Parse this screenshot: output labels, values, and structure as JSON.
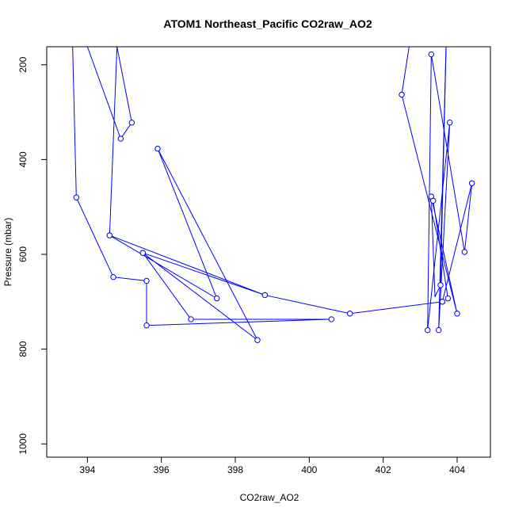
{
  "chart_data": {
    "type": "line",
    "title": "ATOM1 Northeast_Pacific CO2raw_AO2",
    "xlabel": "CO2raw_AO2",
    "ylabel": "Pressure (mbar)",
    "xlim": [
      392.9,
      404.9
    ],
    "ylim": [
      1028,
      162
    ],
    "y_reversed": true,
    "grid": false,
    "xticks": [
      394,
      396,
      398,
      400,
      402,
      404
    ],
    "yticks": [
      200,
      400,
      600,
      800,
      1000
    ],
    "series": [
      {
        "color": "#0000ff",
        "marker": "open-circle",
        "segments": [
          {
            "x": [
              393.6,
              393.7,
              394.7,
              395.6,
              395.6,
              400.6,
              396.8,
              395.5,
              398.6,
              395.9,
              397.5,
              394.6,
              398.8,
              395.5
            ],
            "y": [
              162,
              480,
              648,
              656,
              750,
              737,
              737,
              597,
              781,
              377,
              693,
              560,
              686,
              597
            ],
            "markers": [
              false,
              true,
              true,
              true,
              true,
              true,
              true,
              true,
              true,
              true,
              true,
              true,
              true,
              true
            ]
          },
          {
            "x": [
              398.8,
              401.1,
              403.6
            ],
            "y": [
              686,
              725,
              700
            ],
            "markers": [
              true,
              true,
              true
            ]
          },
          {
            "x": [
              394.0,
              394.9,
              395.2,
              394.8,
              394.6
            ],
            "y": [
              162,
              356,
              322,
              162,
              560
            ],
            "markers": [
              false,
              true,
              true,
              false,
              true
            ]
          },
          {
            "x": [
              403.6,
              404.4,
              404.2,
              403.3,
              403.2,
              403.8,
              403.5,
              403.7
            ],
            "y": [
              700,
              450,
              595,
              178,
              760,
              322,
              760,
              162
            ],
            "markers": [
              true,
              true,
              true,
              true,
              true,
              true,
              true,
              false
            ]
          },
          {
            "x": [
              403.7,
              403.55,
              403.4,
              403.3,
              404.0,
              402.5,
              402.7
            ],
            "y": [
              162,
              665,
              690,
              478,
              725,
              263,
              162
            ],
            "markers": [
              false,
              true,
              false,
              true,
              true,
              true,
              false
            ]
          },
          {
            "x": [
              403.35,
              403.75
            ],
            "y": [
              487,
              693
            ],
            "markers": [
              true,
              true
            ]
          }
        ]
      }
    ]
  }
}
